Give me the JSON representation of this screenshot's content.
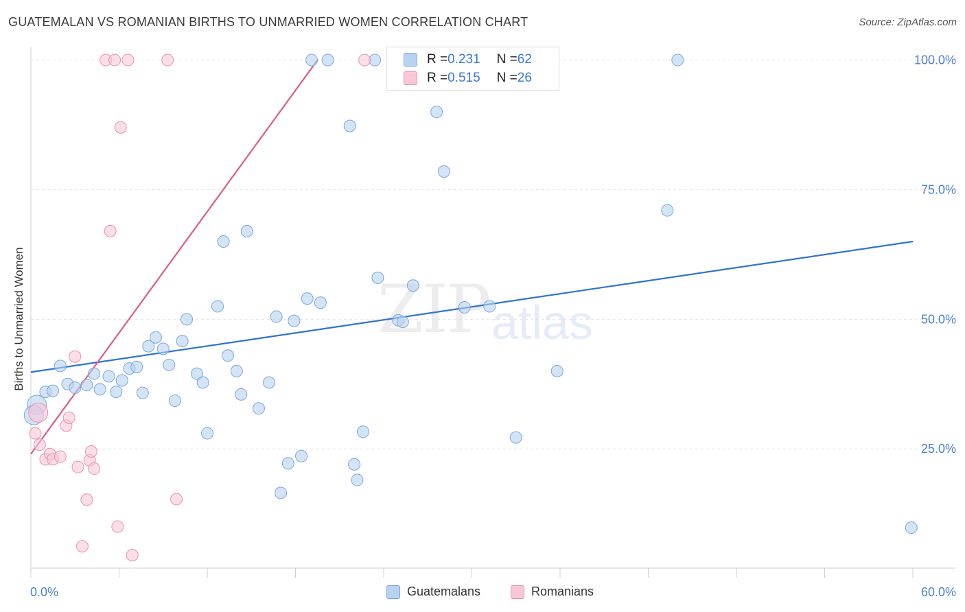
{
  "title": "GUATEMALAN VS ROMANIAN BIRTHS TO UNMARRIED WOMEN CORRELATION CHART",
  "source": "Source: ZipAtlas.com",
  "watermark": {
    "zip": "ZIP",
    "atlas": "atlas"
  },
  "legend": {
    "series1": {
      "r_label": "R = ",
      "r_value": "0.231",
      "n_label": "N = ",
      "n_value": "62"
    },
    "series2": {
      "r_label": "R = ",
      "r_value": "0.515",
      "n_label": "N = ",
      "n_value": "26"
    }
  },
  "colors": {
    "guatemalans_fill": "#b8d2f2",
    "guatemalans_stroke": "#7aa6e0",
    "guatemalans_line": "#2f72d0",
    "romanians_fill": "#f9c8d8",
    "romanians_stroke": "#ec8fad",
    "romanians_line": "#e2588a",
    "tick": "#4a7fd4"
  },
  "chart_data": {
    "type": "scatter",
    "title": "GUATEMALAN VS ROMANIAN BIRTHS TO UNMARRIED WOMEN CORRELATION CHART",
    "xlabel": "",
    "ylabel": "Births to Unmarried Women",
    "xlim": [
      0,
      60
    ],
    "ylim": [
      2,
      101
    ],
    "x_tick_labels": [
      "0.0%",
      "60.0%"
    ],
    "y_ticks": [
      25,
      50,
      75,
      100
    ],
    "y_tick_labels": [
      "25.0%",
      "50.0%",
      "75.0%",
      "100.0%"
    ],
    "grid": true,
    "legend_position": "top-center",
    "series": [
      {
        "name": "Guatemalans",
        "points": [
          [
            0.4,
            33.5
          ],
          [
            0.2,
            31.5
          ],
          [
            1.0,
            36.0
          ],
          [
            1.5,
            36.2
          ],
          [
            2.0,
            41.0
          ],
          [
            2.5,
            37.5
          ],
          [
            3.0,
            36.8
          ],
          [
            3.8,
            37.3
          ],
          [
            4.3,
            39.5
          ],
          [
            4.7,
            36.5
          ],
          [
            5.3,
            39.0
          ],
          [
            5.8,
            36.0
          ],
          [
            6.2,
            38.2
          ],
          [
            6.7,
            40.5
          ],
          [
            7.2,
            40.8
          ],
          [
            7.6,
            35.8
          ],
          [
            8.0,
            44.8
          ],
          [
            8.5,
            46.5
          ],
          [
            9.0,
            44.3
          ],
          [
            9.4,
            41.2
          ],
          [
            9.8,
            34.3
          ],
          [
            10.3,
            45.8
          ],
          [
            10.6,
            50.0
          ],
          [
            11.3,
            39.5
          ],
          [
            11.7,
            37.8
          ],
          [
            12.0,
            28.0
          ],
          [
            12.7,
            52.5
          ],
          [
            13.1,
            65.0
          ],
          [
            13.4,
            43.0
          ],
          [
            14.0,
            40.0
          ],
          [
            14.3,
            35.5
          ],
          [
            14.7,
            67.0
          ],
          [
            15.5,
            32.8
          ],
          [
            16.2,
            37.8
          ],
          [
            16.7,
            50.5
          ],
          [
            17.0,
            16.5
          ],
          [
            17.5,
            22.2
          ],
          [
            17.9,
            49.7
          ],
          [
            18.4,
            23.6
          ],
          [
            18.8,
            54.0
          ],
          [
            19.7,
            53.2
          ],
          [
            19.1,
            100.0
          ],
          [
            20.2,
            100.0
          ],
          [
            21.7,
            87.3
          ],
          [
            22.0,
            22.0
          ],
          [
            22.2,
            19.0
          ],
          [
            22.6,
            28.3
          ],
          [
            23.4,
            100.0
          ],
          [
            23.6,
            58.0
          ],
          [
            25.0,
            49.8
          ],
          [
            25.3,
            49.5
          ],
          [
            26.0,
            56.5
          ],
          [
            27.6,
            90.0
          ],
          [
            28.1,
            78.5
          ],
          [
            29.5,
            52.3
          ],
          [
            31.2,
            52.5
          ],
          [
            33.0,
            27.2
          ],
          [
            35.8,
            40.0
          ],
          [
            43.3,
            71.0
          ],
          [
            59.9,
            9.8
          ],
          [
            31.8,
            100.0
          ],
          [
            44.0,
            100.0
          ]
        ],
        "trend": {
          "x": [
            0,
            60
          ],
          "y": [
            39.8,
            65.0
          ]
        }
      },
      {
        "name": "Romanians",
        "points": [
          [
            0.3,
            28.0
          ],
          [
            0.6,
            25.8
          ],
          [
            1.0,
            23.0
          ],
          [
            1.3,
            24.0
          ],
          [
            1.5,
            23.0
          ],
          [
            2.0,
            23.5
          ],
          [
            2.4,
            29.5
          ],
          [
            2.6,
            31.0
          ],
          [
            3.0,
            42.8
          ],
          [
            3.2,
            21.5
          ],
          [
            3.5,
            6.2
          ],
          [
            3.8,
            15.2
          ],
          [
            4.0,
            22.8
          ],
          [
            4.1,
            24.5
          ],
          [
            4.3,
            21.2
          ],
          [
            5.1,
            100.0
          ],
          [
            5.4,
            67.0
          ],
          [
            5.7,
            100.0
          ],
          [
            5.9,
            10.0
          ],
          [
            6.1,
            87.0
          ],
          [
            6.6,
            100.0
          ],
          [
            6.9,
            4.5
          ],
          [
            9.3,
            100.0
          ],
          [
            9.9,
            15.3
          ],
          [
            22.7,
            100.0
          ],
          [
            0.5,
            32.0
          ]
        ],
        "trend": {
          "x": [
            0,
            19.5
          ],
          "y": [
            24.0,
            100.0
          ]
        }
      }
    ]
  },
  "bottom_legend": {
    "item1": "Guatemalans",
    "item2": "Romanians"
  }
}
